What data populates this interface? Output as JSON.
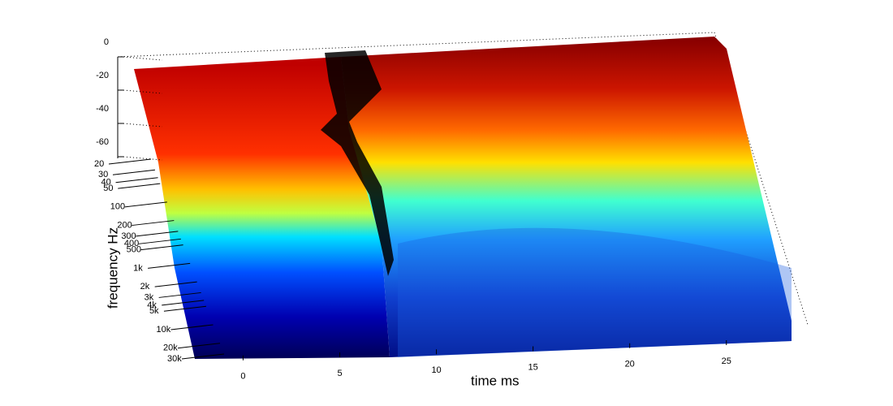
{
  "chart_data": {
    "type": "surface",
    "xlabel": "time   ms",
    "ylabel": "frequency   Hz",
    "xlim": [
      -3,
      29
    ],
    "xticks": [
      0,
      5,
      10,
      15,
      20,
      25
    ],
    "ylim": [
      20,
      30000
    ],
    "ylog": true,
    "yticks": [
      20,
      30,
      40,
      50,
      100,
      200,
      300,
      400,
      500,
      {
        "value": 1000,
        "label": "1k"
      },
      {
        "value": 2000,
        "label": "2k"
      },
      {
        "value": 3000,
        "label": "3k"
      },
      {
        "value": 4000,
        "label": "4k"
      },
      {
        "value": 5000,
        "label": "5k"
      },
      {
        "value": 10000,
        "label": "10k"
      },
      {
        "value": 20000,
        "label": "20k"
      },
      {
        "value": 30000,
        "label": "30k"
      }
    ],
    "zlim": [
      -60,
      0
    ],
    "zticks": [
      0,
      -20,
      -40,
      -60
    ]
  }
}
